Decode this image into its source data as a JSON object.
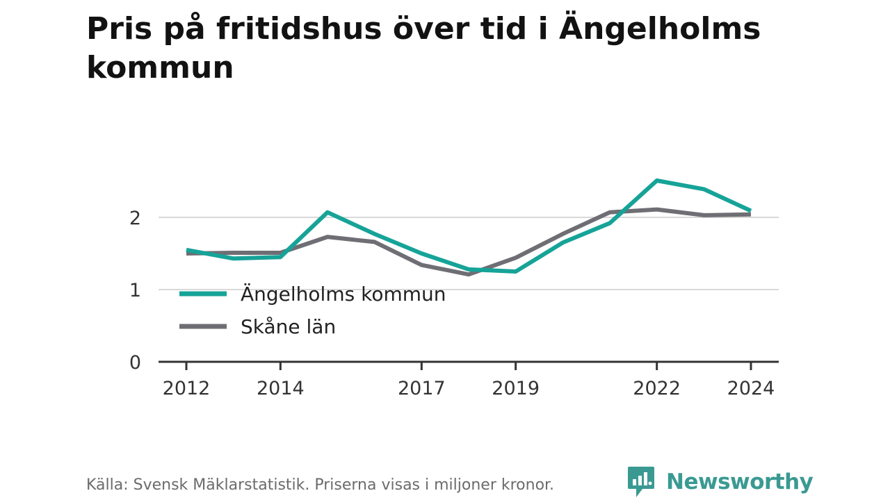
{
  "title": "Pris på fritidshus över tid i Ängelholms kommun",
  "footer": {
    "source": "Källa: Svensk Mäklarstatistik. Priserna visas i miljoner kronor."
  },
  "brand": {
    "name": "Newsworthy",
    "icon": "newsworthy-logo-icon",
    "color": "#3a9a92"
  },
  "chart_data": {
    "type": "line",
    "x": [
      2012,
      2013,
      2014,
      2015,
      2016,
      2017,
      2018,
      2019,
      2020,
      2021,
      2022,
      2023,
      2024
    ],
    "x_tick_labels": [
      "2012",
      "2014",
      "2017",
      "2019",
      "2022",
      "2024"
    ],
    "y_ticks": [
      0,
      1,
      2
    ],
    "ylim": [
      0,
      2.5
    ],
    "grid": "horizontal",
    "legend_position": "bottom-left",
    "series": [
      {
        "name": "Ängelholms kommun",
        "color": "#16a398",
        "values": [
          1.55,
          1.43,
          1.45,
          2.07,
          1.77,
          1.5,
          1.28,
          1.25,
          1.65,
          1.92,
          2.51,
          2.39,
          2.09
        ]
      },
      {
        "name": "Skåne län",
        "color": "#6e6e74",
        "values": [
          1.5,
          1.51,
          1.51,
          1.73,
          1.66,
          1.34,
          1.21,
          1.44,
          1.77,
          2.07,
          2.11,
          2.03,
          2.04
        ]
      }
    ]
  }
}
